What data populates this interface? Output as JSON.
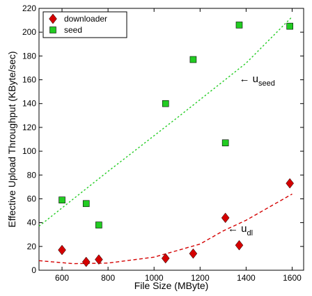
{
  "chart_data": {
    "type": "scatter",
    "xlabel": "File Size (MByte)",
    "ylabel": "Effective Upload Throughput (KByte/sec)",
    "xlim": [
      500,
      1650
    ],
    "ylim": [
      0,
      220
    ],
    "xticks": [
      600,
      800,
      1000,
      1200,
      1400,
      1600
    ],
    "yticks": [
      0,
      20,
      40,
      60,
      80,
      100,
      120,
      140,
      160,
      180,
      200,
      220
    ],
    "grid": false,
    "legend_position": "top-left",
    "series": [
      {
        "name": "downloader",
        "marker": "diamond",
        "color": "#d40000",
        "points": [
          {
            "x": 600,
            "y": 17
          },
          {
            "x": 705,
            "y": 7
          },
          {
            "x": 760,
            "y": 9
          },
          {
            "x": 1050,
            "y": 10
          },
          {
            "x": 1170,
            "y": 14
          },
          {
            "x": 1310,
            "y": 44
          },
          {
            "x": 1370,
            "y": 21
          },
          {
            "x": 1590,
            "y": 73
          }
        ]
      },
      {
        "name": "seed",
        "marker": "square",
        "color": "#22cc22",
        "points": [
          {
            "x": 600,
            "y": 59
          },
          {
            "x": 705,
            "y": 56
          },
          {
            "x": 760,
            "y": 38
          },
          {
            "x": 1050,
            "y": 140
          },
          {
            "x": 1170,
            "y": 177
          },
          {
            "x": 1310,
            "y": 107
          },
          {
            "x": 1370,
            "y": 206
          },
          {
            "x": 1590,
            "y": 205
          }
        ]
      }
    ],
    "fits": [
      {
        "series": "seed",
        "color": "#22cc22",
        "style": "dotted",
        "points": [
          {
            "x": 500,
            "y": 37
          },
          {
            "x": 800,
            "y": 83
          },
          {
            "x": 1100,
            "y": 128
          },
          {
            "x": 1400,
            "y": 174
          },
          {
            "x": 1600,
            "y": 213
          }
        ]
      },
      {
        "series": "downloader",
        "color": "#d40000",
        "style": "dashed",
        "points": [
          {
            "x": 500,
            "y": 8
          },
          {
            "x": 650,
            "y": 5.5
          },
          {
            "x": 800,
            "y": 6
          },
          {
            "x": 1000,
            "y": 11
          },
          {
            "x": 1200,
            "y": 22
          },
          {
            "x": 1300,
            "y": 33
          },
          {
            "x": 1400,
            "y": 42
          },
          {
            "x": 1600,
            "y": 64
          }
        ]
      }
    ],
    "annotations": [
      {
        "arrow": "←",
        "text": "u",
        "subscript": "seed",
        "x": 1370,
        "y": 161
      },
      {
        "arrow": "←",
        "text": "u",
        "subscript": "dl",
        "x": 1320,
        "y": 35
      }
    ]
  }
}
